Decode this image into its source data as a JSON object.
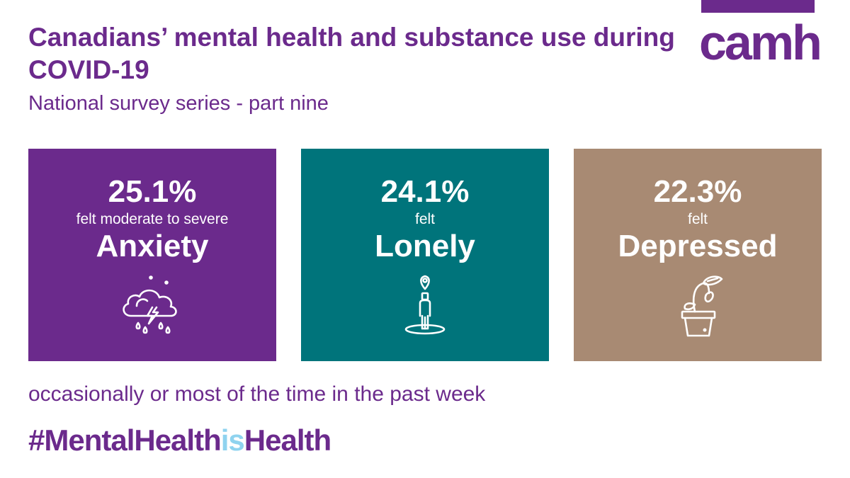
{
  "brand": {
    "logo_text": "camh",
    "color": "#6b2a8c"
  },
  "header": {
    "title": "Canadians’ mental health and substance use during COVID-19",
    "subtitle": "National survey series - part nine"
  },
  "cards": [
    {
      "percent": "25.1%",
      "prefix": "felt moderate to severe",
      "label": "Anxiety",
      "icon": "storm-cloud-icon",
      "color": "#6b2a8c"
    },
    {
      "percent": "24.1%",
      "prefix": "felt",
      "label": "Lonely",
      "icon": "person-location-pin-icon",
      "color": "#00747b"
    },
    {
      "percent": "22.3%",
      "prefix": "felt",
      "label": "Depressed",
      "icon": "wilting-plant-icon",
      "color": "#a88a73"
    }
  ],
  "footer": {
    "note": "occasionally or most of the time in the past week",
    "hashtag_start": "#MentalHealth",
    "hashtag_mid": "is",
    "hashtag_end": "Health",
    "hashtag_accent_color": "#8fd3ef"
  }
}
